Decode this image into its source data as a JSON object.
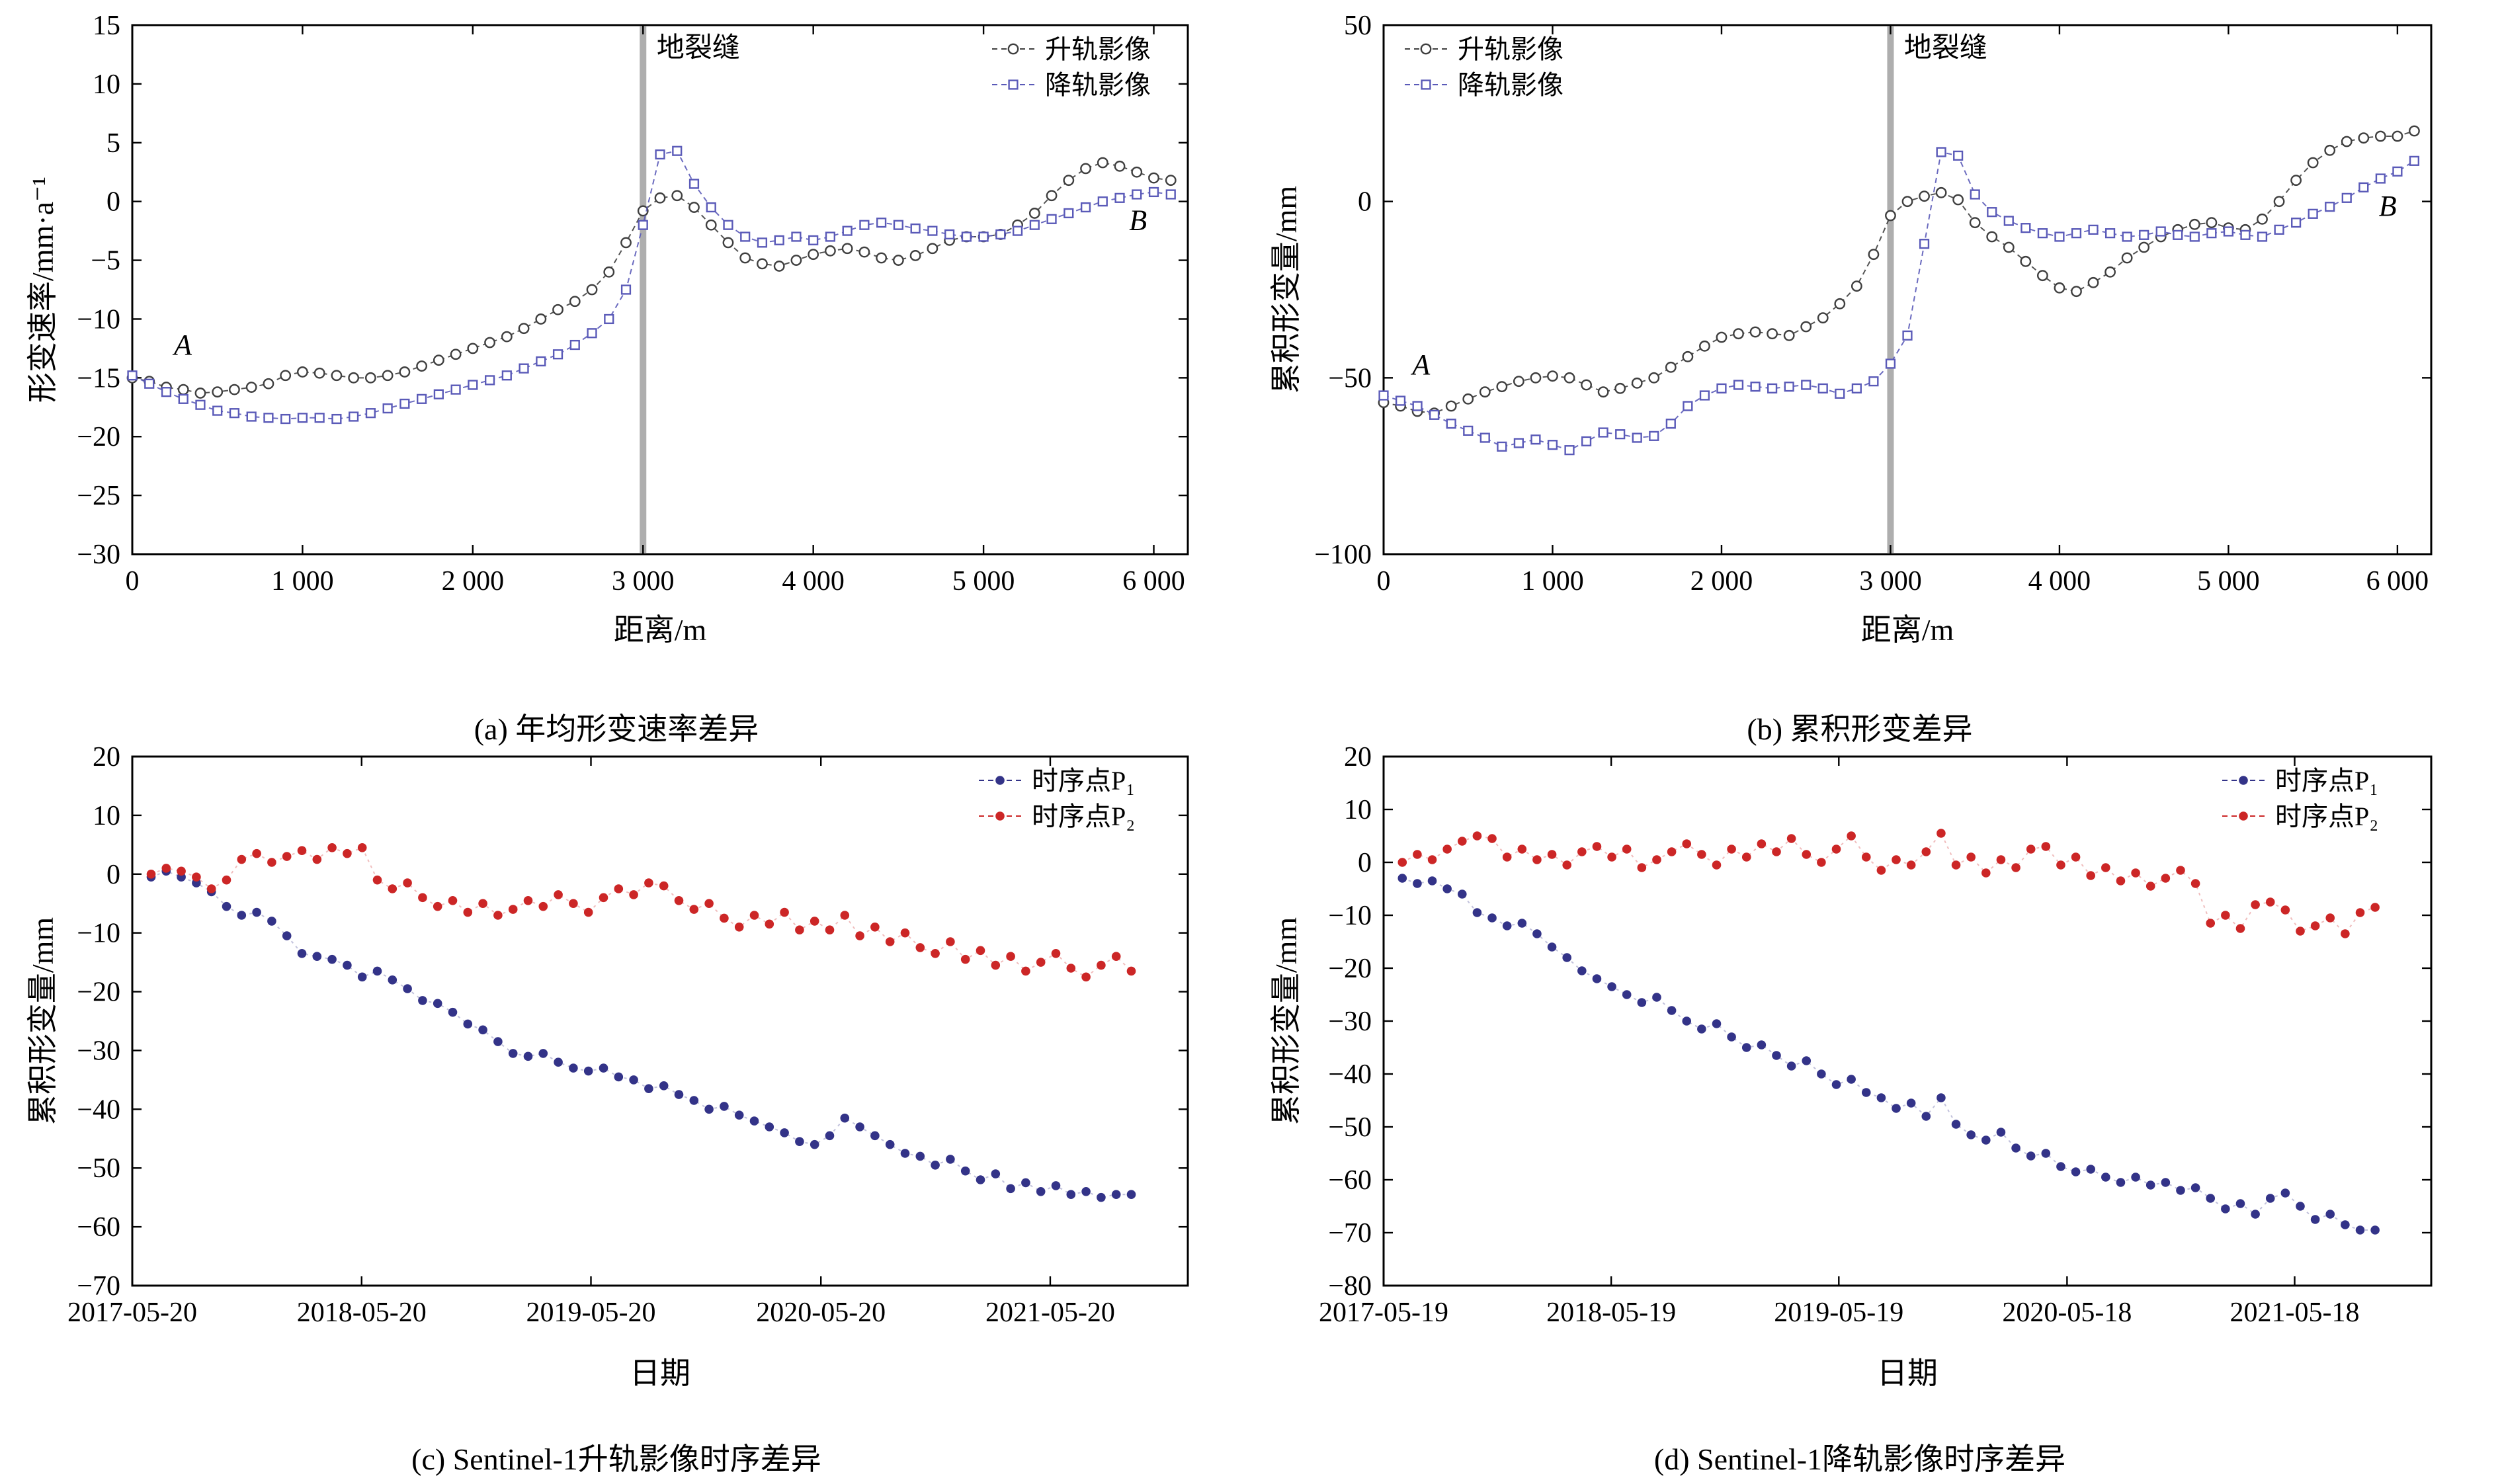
{
  "chart_data": [
    {
      "type": "line",
      "title": "(a) 年均形变速率差异",
      "xlabel": "距离/m",
      "ylabel": "形变速率/mm·a⁻¹",
      "xlim": [
        0,
        6200
      ],
      "ylim": [
        -30,
        15
      ],
      "xticks": [
        0,
        1000,
        2000,
        3000,
        4000,
        5000,
        6000
      ],
      "xtick_labels": [
        "0",
        "1 000",
        "2 000",
        "3 000",
        "4 000",
        "5 000",
        "6 000"
      ],
      "yticks": [
        15,
        10,
        5,
        0,
        -5,
        -10,
        -15,
        -20,
        -25,
        -30
      ],
      "grid": false,
      "vline": {
        "x": 3000,
        "label": "地裂缝",
        "label_x": 3080,
        "label_y": 12.3,
        "color": "#9a9a9a"
      },
      "texts": [
        {
          "x": 245,
          "y": -13.0,
          "t": "A"
        },
        {
          "x": 5855,
          "y": -2.4,
          "t": "B"
        }
      ],
      "legend": {
        "pos": "tr",
        "w": 148,
        "y0": 18
      },
      "x": [
        0,
        100,
        200,
        300,
        400,
        500,
        600,
        700,
        800,
        900,
        1000,
        1100,
        1200,
        1300,
        1400,
        1500,
        1600,
        1700,
        1800,
        1900,
        2000,
        2100,
        2200,
        2300,
        2400,
        2500,
        2600,
        2700,
        2800,
        2900,
        3000,
        3100,
        3200,
        3300,
        3400,
        3500,
        3600,
        3700,
        3800,
        3900,
        4000,
        4100,
        4200,
        4300,
        4400,
        4500,
        4600,
        4700,
        4800,
        4900,
        5000,
        5100,
        5200,
        5300,
        5400,
        5500,
        5600,
        5700,
        5800,
        5900,
        6000,
        6100
      ],
      "series": [
        {
          "name": "升轨影像",
          "marker": "circle-open",
          "color": "#3f3f3f",
          "y": [
            -15,
            -15.3,
            -15.8,
            -16,
            -16.3,
            -16.2,
            -16,
            -15.8,
            -15.5,
            -14.8,
            -14.5,
            -14.6,
            -14.8,
            -15,
            -15,
            -14.8,
            -14.5,
            -14,
            -13.5,
            -13,
            -12.5,
            -12,
            -11.5,
            -10.8,
            -10,
            -9.2,
            -8.5,
            -7.5,
            -6,
            -3.5,
            -0.8,
            0.3,
            0.5,
            -0.5,
            -2,
            -3.5,
            -4.8,
            -5.3,
            -5.5,
            -5,
            -4.5,
            -4.2,
            -4,
            -4.3,
            -4.8,
            -5,
            -4.6,
            -4,
            -3.3,
            -3,
            -3,
            -2.8,
            -2,
            -1,
            0.5,
            1.8,
            2.8,
            3.3,
            3,
            2.5,
            2,
            1.8
          ]
        },
        {
          "name": "降轨影像",
          "marker": "square-open",
          "color": "#5a5ab8",
          "y": [
            -14.8,
            -15.5,
            -16.2,
            -16.8,
            -17.3,
            -17.8,
            -18,
            -18.3,
            -18.4,
            -18.5,
            -18.4,
            -18.4,
            -18.5,
            -18.3,
            -18,
            -17.6,
            -17.2,
            -16.8,
            -16.4,
            -16,
            -15.6,
            -15.2,
            -14.8,
            -14.2,
            -13.6,
            -13,
            -12.2,
            -11.2,
            -10,
            -7.5,
            -2,
            4,
            4.3,
            1.5,
            -0.5,
            -2,
            -3,
            -3.5,
            -3.3,
            -3,
            -3.3,
            -3,
            -2.5,
            -2,
            -1.8,
            -2,
            -2.3,
            -2.5,
            -2.8,
            -3,
            -3,
            -2.8,
            -2.5,
            -2,
            -1.5,
            -1,
            -0.5,
            0,
            0.3,
            0.6,
            0.8,
            0.6
          ]
        }
      ]
    },
    {
      "type": "line",
      "title": "(b) 累积形变差异",
      "xlabel": "距离/m",
      "ylabel": "累积形变量/mm",
      "xlim": [
        0,
        6200
      ],
      "ylim": [
        -100,
        50
      ],
      "xticks": [
        0,
        1000,
        2000,
        3000,
        4000,
        5000,
        6000
      ],
      "xtick_labels": [
        "0",
        "1 000",
        "2 000",
        "3 000",
        "4 000",
        "5 000",
        "6 000"
      ],
      "yticks": [
        50,
        0,
        -50,
        -100
      ],
      "grid": false,
      "vline": {
        "x": 3000,
        "label": "地裂缝",
        "label_x": 3080,
        "label_y": 41,
        "color": "#9a9a9a"
      },
      "texts": [
        {
          "x": 170,
          "y": -49,
          "t": "A"
        },
        {
          "x": 5890,
          "y": -4,
          "t": "B"
        }
      ],
      "legend": {
        "pos": "tl",
        "w": 148,
        "y0": 18
      },
      "x": [
        0,
        100,
        200,
        300,
        400,
        500,
        600,
        700,
        800,
        900,
        1000,
        1100,
        1200,
        1300,
        1400,
        1500,
        1600,
        1700,
        1800,
        1900,
        2000,
        2100,
        2200,
        2300,
        2400,
        2500,
        2600,
        2700,
        2800,
        2900,
        3000,
        3100,
        3200,
        3300,
        3400,
        3500,
        3600,
        3700,
        3800,
        3900,
        4000,
        4100,
        4200,
        4300,
        4400,
        4500,
        4600,
        4700,
        4800,
        4900,
        5000,
        5100,
        5200,
        5300,
        5400,
        5500,
        5600,
        5700,
        5800,
        5900,
        6000,
        6100
      ],
      "series": [
        {
          "name": "升轨影像",
          "marker": "circle-open",
          "color": "#3f3f3f",
          "y": [
            -57,
            -58,
            -59.5,
            -60,
            -58,
            -56,
            -54,
            -52.5,
            -51,
            -50,
            -49.5,
            -50,
            -52,
            -54,
            -53,
            -51.5,
            -50,
            -47,
            -44,
            -41,
            -38.5,
            -37.5,
            -37,
            -37.5,
            -38,
            -35.5,
            -33,
            -29,
            -24,
            -15,
            -4,
            0,
            1.5,
            2.5,
            0.5,
            -6,
            -10,
            -13,
            -17,
            -21,
            -24.5,
            -25.5,
            -23,
            -20,
            -16,
            -13,
            -10,
            -8,
            -6.5,
            -6,
            -7.5,
            -8,
            -5,
            0,
            6,
            11,
            14.5,
            17,
            18,
            18.5,
            18.5,
            20
          ]
        },
        {
          "name": "降轨影像",
          "marker": "square-open",
          "color": "#5a5ab8",
          "y": [
            -55,
            -56.5,
            -58,
            -60.5,
            -63,
            -65,
            -67,
            -69.5,
            -68.5,
            -67.5,
            -69,
            -70.5,
            -68,
            -65.5,
            -66,
            -67,
            -66.5,
            -63,
            -58,
            -55,
            -53,
            -52,
            -52.5,
            -53,
            -52.5,
            -52,
            -53,
            -54.5,
            -53,
            -51,
            -46,
            -38,
            -12,
            14,
            13,
            2,
            -3,
            -5.5,
            -7.5,
            -9,
            -10,
            -9,
            -8,
            -9,
            -10,
            -9.5,
            -8.5,
            -9.5,
            -10,
            -9,
            -8.5,
            -9.5,
            -10,
            -8,
            -6,
            -3.5,
            -1.5,
            1,
            4,
            6.5,
            8.5,
            11.5
          ]
        }
      ]
    },
    {
      "type": "scatter",
      "title": "(c) Sentinel-1升轨影像时序差异",
      "xlabel": "日期",
      "ylabel": "累积形变量/mm",
      "xlim": [
        0,
        1680
      ],
      "ylim": [
        -70,
        20
      ],
      "xticks": [
        0,
        365,
        730,
        1096,
        1461
      ],
      "xtick_labels": [
        "2017-05-20",
        "2018-05-20",
        "2019-05-20",
        "2020-05-20",
        "2021-05-20"
      ],
      "yticks": [
        20,
        10,
        0,
        -10,
        -20,
        -30,
        -40,
        -50,
        -60,
        -70
      ],
      "grid": false,
      "legend": {
        "pos": "tr",
        "w": 158,
        "y0": 18
      },
      "x": [
        30,
        54,
        78,
        102,
        126,
        150,
        174,
        198,
        222,
        246,
        270,
        294,
        318,
        342,
        366,
        390,
        414,
        438,
        462,
        486,
        510,
        534,
        558,
        582,
        606,
        630,
        654,
        678,
        702,
        726,
        750,
        774,
        798,
        822,
        846,
        870,
        894,
        918,
        942,
        966,
        990,
        1014,
        1038,
        1062,
        1086,
        1110,
        1134,
        1158,
        1182,
        1206,
        1230,
        1254,
        1278,
        1302,
        1326,
        1350,
        1374,
        1398,
        1422,
        1446,
        1470,
        1494,
        1518,
        1542,
        1566,
        1590
      ],
      "series": [
        {
          "name": "时序点P₁",
          "marker": "dot",
          "color": "#333388",
          "line_dash": "2 3",
          "line_opacity": 0.3,
          "y": [
            -0.5,
            0.5,
            -0.5,
            -1.5,
            -3,
            -5.5,
            -7,
            -6.5,
            -8,
            -10.5,
            -13.5,
            -14,
            -14.5,
            -15.5,
            -17.5,
            -16.5,
            -18,
            -19.5,
            -21.5,
            -22,
            -23.5,
            -25.5,
            -26.5,
            -28.5,
            -30.5,
            -31,
            -30.5,
            -32,
            -33,
            -33.5,
            -33,
            -34.5,
            -35,
            -36.5,
            -36,
            -37.5,
            -38.5,
            -40,
            -39.5,
            -41,
            -42,
            -43,
            -44,
            -45.5,
            -46,
            -44.5,
            -41.5,
            -43,
            -44.5,
            -46,
            -47.5,
            -48,
            -49.5,
            -48.5,
            -50.5,
            -52,
            -51,
            -53.5,
            -52.5,
            -54,
            -53,
            -54.5,
            -54,
            -55,
            -54.5,
            -54.5
          ]
        },
        {
          "name": "时序点P₂",
          "marker": "dot",
          "color": "#cc2626",
          "line_dash": "2 3",
          "line_opacity": 0.3,
          "y": [
            0,
            1,
            0.5,
            -0.5,
            -2.5,
            -1,
            2.5,
            3.5,
            2,
            3,
            4,
            2.5,
            4.5,
            3.5,
            4.5,
            -1,
            -2.5,
            -1.5,
            -4,
            -5.5,
            -4.5,
            -6.5,
            -5,
            -7,
            -6,
            -4.5,
            -5.5,
            -3.5,
            -5,
            -6.5,
            -4,
            -2.5,
            -3.5,
            -1.5,
            -2,
            -4.5,
            -6,
            -5,
            -7.5,
            -9,
            -7,
            -8.5,
            -6.5,
            -9.5,
            -8,
            -9.5,
            -7,
            -10.5,
            -9,
            -11.5,
            -10,
            -12.5,
            -13.5,
            -11.5,
            -14.5,
            -13,
            -15.5,
            -14,
            -16.5,
            -15,
            -13.5,
            -16,
            -17.5,
            -15.5,
            -14,
            -16.5
          ]
        }
      ]
    },
    {
      "type": "scatter",
      "title": "(d) Sentinel-1降轨影像时序差异",
      "xlabel": "日期",
      "ylabel": "累积形变量/mm",
      "xlim": [
        0,
        1680
      ],
      "ylim": [
        -80,
        20
      ],
      "xticks": [
        0,
        365,
        730,
        1096,
        1461
      ],
      "xtick_labels": [
        "2017-05-19",
        "2018-05-19",
        "2019-05-19",
        "2020-05-18",
        "2021-05-18"
      ],
      "yticks": [
        20,
        10,
        0,
        -10,
        -20,
        -30,
        -40,
        -50,
        -60,
        -70,
        -80
      ],
      "grid": false,
      "legend": {
        "pos": "tr",
        "w": 158,
        "y0": 18
      },
      "x": [
        30,
        54,
        78,
        102,
        126,
        150,
        174,
        198,
        222,
        246,
        270,
        294,
        318,
        342,
        366,
        390,
        414,
        438,
        462,
        486,
        510,
        534,
        558,
        582,
        606,
        630,
        654,
        678,
        702,
        726,
        750,
        774,
        798,
        822,
        846,
        870,
        894,
        918,
        942,
        966,
        990,
        1014,
        1038,
        1062,
        1086,
        1110,
        1134,
        1158,
        1182,
        1206,
        1230,
        1254,
        1278,
        1302,
        1326,
        1350,
        1374,
        1398,
        1422,
        1446,
        1470,
        1494,
        1518,
        1542,
        1566,
        1590
      ],
      "series": [
        {
          "name": "时序点P₁",
          "marker": "dot",
          "color": "#333388",
          "line_dash": "2 3",
          "line_opacity": 0.3,
          "y": [
            -3,
            -4,
            -3.5,
            -5,
            -6,
            -9.5,
            -10.5,
            -12,
            -11.5,
            -13.5,
            -16,
            -18,
            -20.5,
            -22,
            -23.5,
            -25,
            -26.5,
            -25.5,
            -28,
            -30,
            -31.5,
            -30.5,
            -33,
            -35,
            -34.5,
            -36.5,
            -38.5,
            -37.5,
            -40,
            -42,
            -41,
            -43.5,
            -44.5,
            -46.5,
            -45.5,
            -48,
            -44.5,
            -49.5,
            -51.5,
            -52.5,
            -51,
            -54,
            -55.5,
            -55,
            -57.5,
            -58.5,
            -58,
            -59.5,
            -60.5,
            -59.5,
            -61,
            -60.5,
            -62,
            -61.5,
            -63.5,
            -65.5,
            -64.5,
            -66.5,
            -63.5,
            -62.5,
            -65,
            -67.5,
            -66.5,
            -68.5,
            -69.5,
            -69.5
          ]
        },
        {
          "name": "时序点P₂",
          "marker": "dot",
          "color": "#cc2626",
          "line_dash": "2 3",
          "line_opacity": 0.3,
          "y": [
            0,
            1.5,
            0.5,
            2.5,
            4,
            5,
            4.5,
            1,
            2.5,
            0.5,
            1.5,
            -0.5,
            2,
            3,
            1,
            2.5,
            -1,
            0.5,
            2,
            3.5,
            1.5,
            -0.5,
            2.5,
            1,
            3.5,
            2,
            4.5,
            1.5,
            0,
            2.5,
            5,
            1,
            -1.5,
            0.5,
            -0.5,
            2,
            5.5,
            -0.5,
            1,
            -2,
            0.5,
            -1,
            2.5,
            3,
            -0.5,
            1,
            -2.5,
            -1,
            -3.5,
            -2,
            -4.5,
            -3,
            -1.5,
            -4,
            -11.5,
            -10,
            -12.5,
            -8,
            -7.5,
            -9,
            -13,
            -12,
            -10.5,
            -13.5,
            -9.5,
            -8.5
          ]
        }
      ]
    }
  ]
}
